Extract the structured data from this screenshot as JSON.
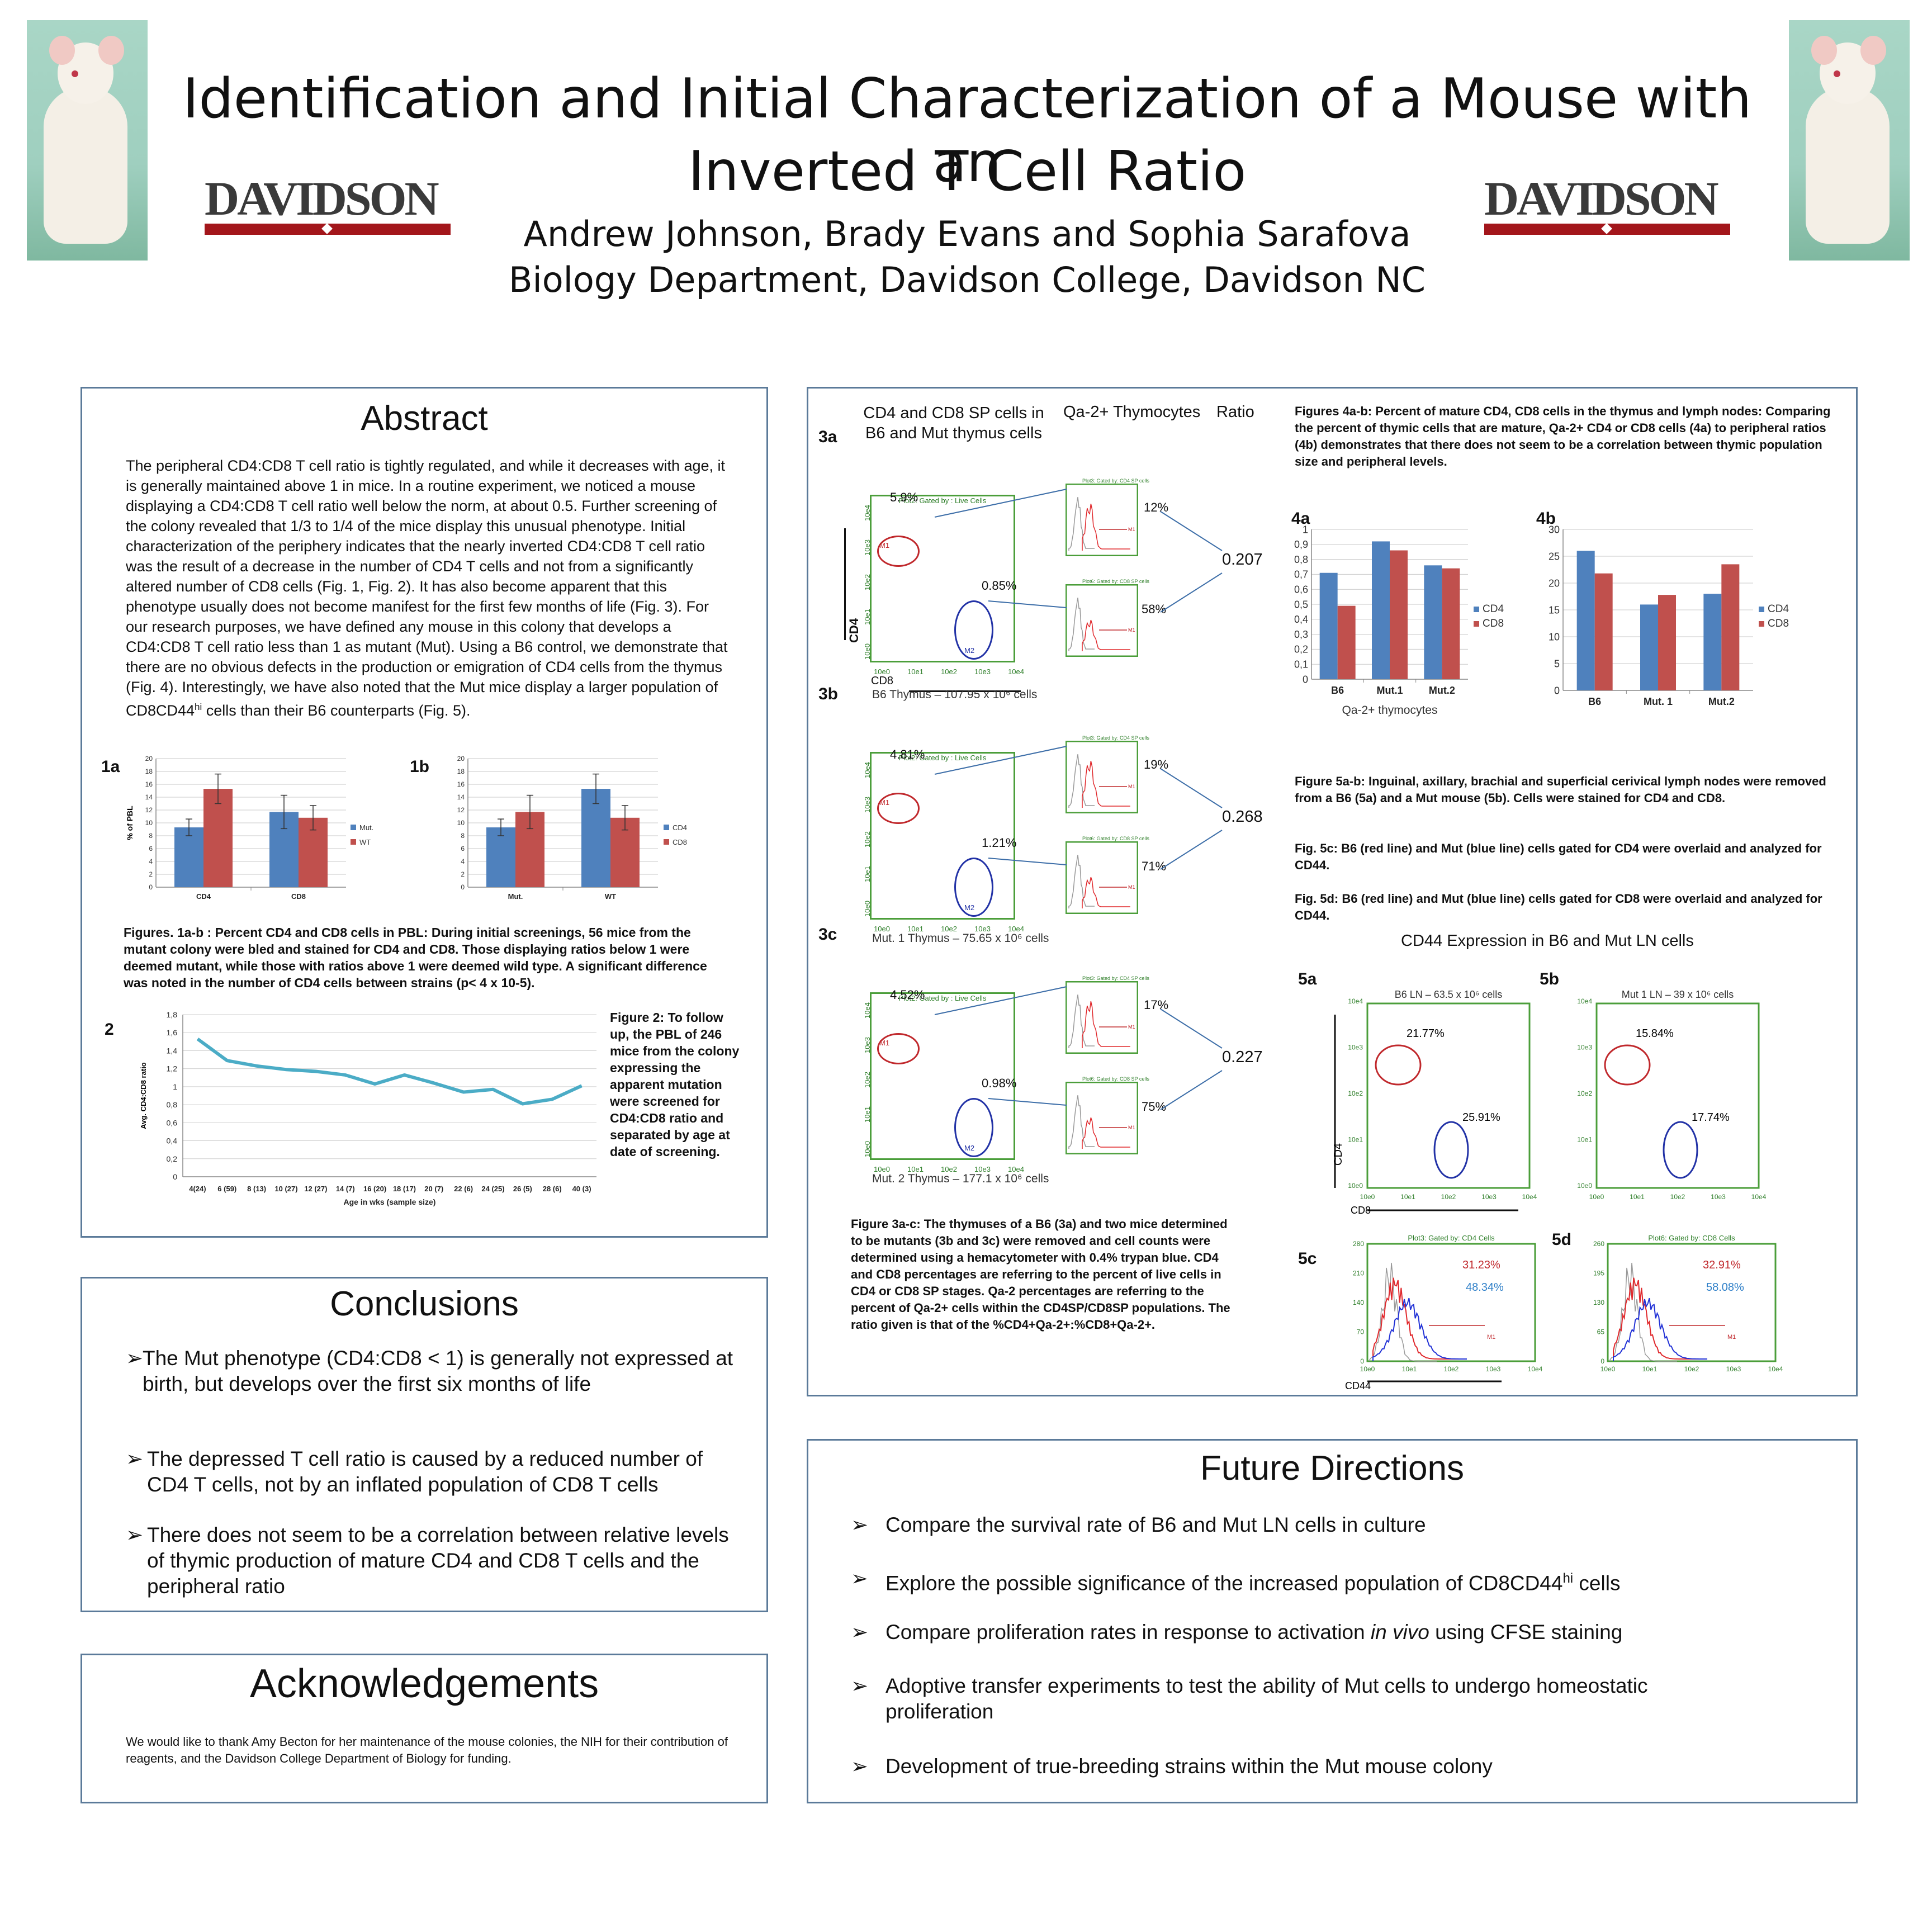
{
  "header": {
    "title_line1": "Identification and Initial Characterization of a Mouse with an",
    "title_line2": "Inverted T Cell Ratio",
    "authors": "Andrew Johnson, Brady Evans and Sophia Sarafova",
    "affiliation": "Biology Department, Davidson College, Davidson NC",
    "logo_text": "DAVIDSON",
    "logo_color": "#a3161b"
  },
  "abstract": {
    "heading": "Abstract",
    "text_a": "The peripheral CD4:CD8 T cell ratio is tightly regulated, and while it decreases with age, it is generally maintained above 1 in mice. In a routine experiment, we noticed a mouse displaying a CD4:CD8 T cell ratio well below the norm, at about 0.5. Further screening of the colony revealed that 1/3 to 1/4 of the mice display this unusual phenotype. Initial characterization of the periphery indicates that the nearly inverted CD4:CD8 T cell ratio was the result of a decrease in the number of CD4 T cells and not from a significantly altered number of CD8 cells (Fig. 1, Fig. 2). It has also become apparent that this phenotype usually does not become manifest for the first few months of life (Fig. 3). For our research purposes, we have defined any mouse in this colony that develops a CD4:CD8 T cell ratio less than 1 as mutant (Mut). Using a B6 control, we demonstrate that there are no obvious defects in the production or emigration of CD4 cells from the thymus (Fig. 4). Interestingly, we have also noted that the Mut mice display a larger population of CD8CD44",
    "text_sup": "hi",
    "text_b": " cells than their B6 counterparts (Fig. 5)."
  },
  "fig1_caption": "Figures. 1a-b : Percent CD4 and CD8 cells in PBL: During initial screenings, 56 mice from the mutant colony were bled and stained for CD4 and CD8. Those displaying ratios below 1 were deemed mutant, while those with ratios above 1 were deemed wild type. A significant difference was noted in the number of CD4 cells between strains (p< 4 x 10-5).",
  "fig2_caption": "Figure 2: To follow up, the PBL of 246 mice from the colony expressing the apparent mutation were screened for CD4:CD8 ratio and separated by age at date of screening.",
  "conclusions": {
    "heading": "Conclusions",
    "items": [
      "The Mut phenotype (CD4:CD8 < 1) is generally not expressed at birth, but develops over the first six months of life",
      "The depressed T cell ratio is caused by a reduced number of CD4 T cells, not by an inflated population of CD8 T cells",
      "There does not seem to be a correlation between relative levels of thymic production of mature CD4 and CD8 T cells and the peripheral ratio"
    ]
  },
  "acknowledgements": {
    "heading": "Acknowledgements",
    "text": "We would like to thank Amy Becton for her maintenance of the mouse colonies, the NIH for their contribution of reagents, and the Davidson College Department of Biology for funding."
  },
  "fig3": {
    "col1_header": "CD4 and CD8 SP cells in B6 and Mut thymus cells",
    "col2_header": "Qa-2+ Thymocytes",
    "col3_header": "Ratio",
    "gate_header": "Plot2:  Gated by : Live Cells",
    "cd4_hist_header": "Plot3:  Gated by: CD4 SP cells",
    "cd8_hist_header": "Plot6:  Gated by: CD8 SP cells",
    "axis_cd4": "CD4",
    "axis_cd8": "CD8",
    "ticks": [
      "10e0",
      "10e1",
      "10e2",
      "10e3",
      "10e4"
    ],
    "gate_m1": "M1",
    "gate_m2": "M2",
    "rows": [
      {
        "label": "3a",
        "cd4_pct": "5.9%",
        "cd8_pct": "0.85%",
        "qa2_cd4": "12%",
        "qa2_cd8": "58%",
        "ratio": "0.207",
        "caption": "B6 Thymus – 107.95 x 10⁶ cells"
      },
      {
        "label": "3b",
        "cd4_pct": "4.81%",
        "cd8_pct": "1.21%",
        "qa2_cd4": "19%",
        "qa2_cd8": "71%",
        "ratio": "0.268",
        "caption": "Mut. 1 Thymus – 75.65 x 10⁶ cells"
      },
      {
        "label": "3c",
        "cd4_pct": "4.52%",
        "cd8_pct": "0.98%",
        "qa2_cd4": "17%",
        "qa2_cd8": "75%",
        "ratio": "0.227",
        "caption": "Mut. 2 Thymus – 177.1 x 10⁶ cells"
      }
    ],
    "caption": "Figure 3a-c: The thymuses of a B6 (3a) and two mice determined to be mutants (3b and 3c) were removed and cell counts were determined using a hemacytometer with 0.4% trypan blue. CD4 and CD8 percentages are referring to the percent of live cells in CD4 or CD8 SP stages. Qa-2 percentages are referring to the percent of Qa-2+ cells within the CD4SP/CD8SP populations. The ratio given is that of the %CD4+Qa-2+:%CD8+Qa-2+."
  },
  "fig4_caption": "Figures 4a-b: Percent of mature CD4, CD8 cells in the thymus and lymph nodes: Comparing the percent of thymic cells that are mature, Qa-2+ CD4 or CD8 cells (4a) to peripheral ratios (4b) demonstrates that there does not seem to be a correlation between thymic population size and peripheral levels.",
  "fig5": {
    "caption_a": "Figure 5a-b: Inguinal, axillary, brachial and superficial cerivical lymph nodes were removed from a B6 (5a) and a Mut mouse (5b). Cells were stained for CD4 and CD8.",
    "caption_c": "Fig. 5c: B6 (red line) and Mut (blue line) cells gated for CD4 were overlaid and analyzed for CD44.",
    "caption_d": "Fig. 5d: B6 (red line) and Mut (blue line) cells gated for CD8 were overlaid and analyzed for CD44.",
    "title": "CD44 Expression in B6 and Mut LN cells",
    "a_label": "5a",
    "b_label": "5b",
    "c_label": "5c",
    "d_label": "5d",
    "a_title": "B6 LN – 63.5 x 10⁶ cells",
    "b_title": "Mut 1 LN – 39 x 10⁶ cells",
    "a_cd4": "21.77%",
    "a_cd8": "25.91%",
    "b_cd4": "15.84%",
    "b_cd8": "17.74%",
    "c_red": "31.23%",
    "c_blue": "48.34%",
    "d_red": "32.91%",
    "d_blue": "58.08%",
    "c_header": "Plot3:  Gated by: CD4 Cells",
    "d_header": "Plot6:  Gated by: CD8 Cells",
    "axis_cd4": "CD4",
    "axis_cd8": "CD8",
    "axis_cd44": "CD44",
    "c_yticks": [
      "0",
      "70",
      "140",
      "210",
      "280"
    ],
    "d_yticks": [
      "0",
      "65",
      "130",
      "195",
      "260"
    ]
  },
  "future": {
    "heading": "Future Directions",
    "items": [
      "Compare the survival rate of B6 and Mut LN cells in culture",
      "Explore the possible significance of the increased population of CD8CD44",
      "Compare proliferation rates in response to activation ",
      "Adoptive transfer experiments to test the ability of Mut cells to undergo homeostatic proliferation",
      "Development of true-breeding strains within the Mut mouse colony"
    ],
    "item2_sup": "hi",
    "item2_tail": " cells",
    "item3_italic": "in vivo",
    "item3_tail": " using CFSE staining"
  },
  "chart_data": [
    {
      "id": "fig1a",
      "label": "1a",
      "type": "bar",
      "categories": [
        "CD4",
        "CD8"
      ],
      "series": [
        {
          "name": "Mut.",
          "values": [
            9.3,
            11.7
          ],
          "errors": [
            1.3,
            2.6
          ],
          "color": "#4f81bd"
        },
        {
          "name": "WT",
          "values": [
            15.3,
            10.8
          ],
          "errors": [
            2.3,
            1.9
          ],
          "color": "#c0504d"
        }
      ],
      "ylabel": "% of PBL",
      "ylim": [
        0,
        20
      ],
      "yticks": [
        "0",
        "2",
        "4",
        "6",
        "8",
        "10",
        "12",
        "14",
        "16",
        "18",
        "20"
      ],
      "legend": "right"
    },
    {
      "id": "fig1b",
      "label": "1b",
      "type": "bar",
      "categories": [
        "Mut.",
        "WT"
      ],
      "series": [
        {
          "name": "CD4",
          "values": [
            9.3,
            15.3
          ],
          "errors": [
            1.3,
            2.3
          ],
          "color": "#4f81bd"
        },
        {
          "name": "CD8",
          "values": [
            11.7,
            10.8
          ],
          "errors": [
            2.6,
            1.9
          ],
          "color": "#c0504d"
        }
      ],
      "ylim": [
        0,
        20
      ],
      "yticks": [
        "0",
        "2",
        "4",
        "6",
        "8",
        "10",
        "12",
        "14",
        "16",
        "18",
        "20"
      ],
      "legend": "right"
    },
    {
      "id": "fig2",
      "label": "2",
      "type": "line",
      "categories": [
        "4(24)",
        "6 (59)",
        "8 (13)",
        "10 (27)",
        "12 (27)",
        "14 (7)",
        "16 (20)",
        "18 (17)",
        "20 (7)",
        "22 (6)",
        "24 (25)",
        "26 (5)",
        "28 (6)",
        "40 (3)"
      ],
      "series": [
        {
          "name": "",
          "values": [
            1.53,
            1.29,
            1.23,
            1.19,
            1.17,
            1.13,
            1.03,
            1.13,
            1.04,
            0.94,
            0.97,
            0.81,
            0.86,
            1.01
          ],
          "color": "#4bacc6"
        }
      ],
      "xlabel": "Age in wks (sample size)",
      "ylabel": "Avg. CD4:CD8 ratio",
      "ylim": [
        0,
        1.8
      ],
      "yticks": [
        "0",
        "0,2",
        "0,4",
        "0,6",
        "0,8",
        "1",
        "1,2",
        "1,4",
        "1,6",
        "1,8"
      ]
    },
    {
      "id": "fig4a",
      "label": "4a",
      "type": "bar",
      "categories": [
        "B6",
        "Mut.1",
        "Mut.2"
      ],
      "series": [
        {
          "name": "CD4",
          "values": [
            0.71,
            0.92,
            0.76
          ],
          "color": "#4f81bd"
        },
        {
          "name": "CD8",
          "values": [
            0.49,
            0.86,
            0.74
          ],
          "color": "#c0504d"
        }
      ],
      "xlabel": "Qa-2+ thymocytes",
      "ylim": [
        0,
        1
      ],
      "yticks": [
        "0",
        "0,1",
        "0,2",
        "0,3",
        "0,4",
        "0,5",
        "0,6",
        "0,7",
        "0,8",
        "0,9",
        "1"
      ],
      "legend": "right"
    },
    {
      "id": "fig4b",
      "label": "4b",
      "type": "bar",
      "categories": [
        "B6",
        "Mut. 1",
        "Mut.2"
      ],
      "series": [
        {
          "name": "CD4",
          "values": [
            26,
            16,
            18
          ],
          "color": "#4f81bd"
        },
        {
          "name": "CD8",
          "values": [
            21.8,
            17.8,
            23.5
          ],
          "color": "#c0504d"
        }
      ],
      "ylim": [
        0,
        30
      ],
      "yticks": [
        "0",
        "5",
        "10",
        "15",
        "20",
        "25",
        "30"
      ],
      "legend": "right"
    }
  ]
}
